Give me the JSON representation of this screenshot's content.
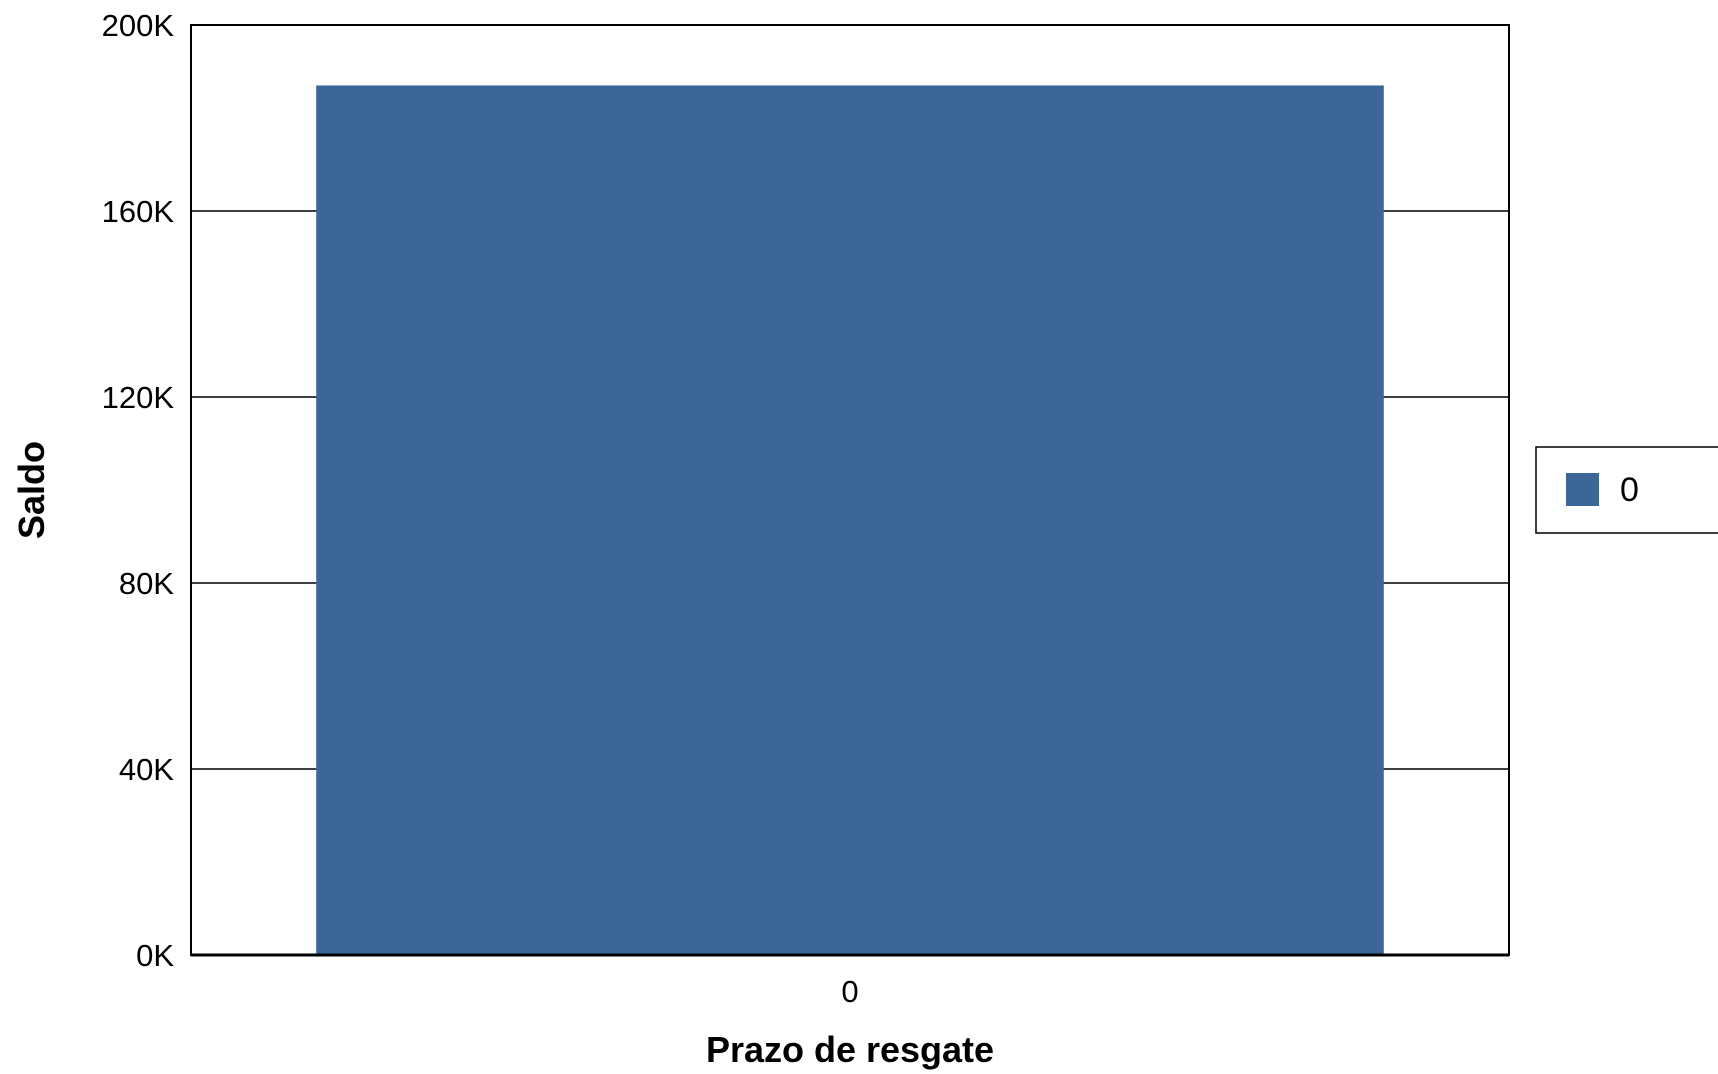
{
  "chart_data": {
    "type": "bar",
    "categories": [
      "0"
    ],
    "series": [
      {
        "name": "0",
        "values": [
          187000
        ],
        "color": "#3b6698"
      }
    ],
    "xlabel": "Prazo de resgate",
    "ylabel": "Saldo",
    "ylim": [
      0,
      200000
    ],
    "yticks": [
      0,
      40000,
      80000,
      120000,
      160000,
      200000
    ],
    "ytick_labels": [
      "0K",
      "40K",
      "80K",
      "120K",
      "160K",
      "200K"
    ],
    "grid": true,
    "legend_position": "right"
  }
}
